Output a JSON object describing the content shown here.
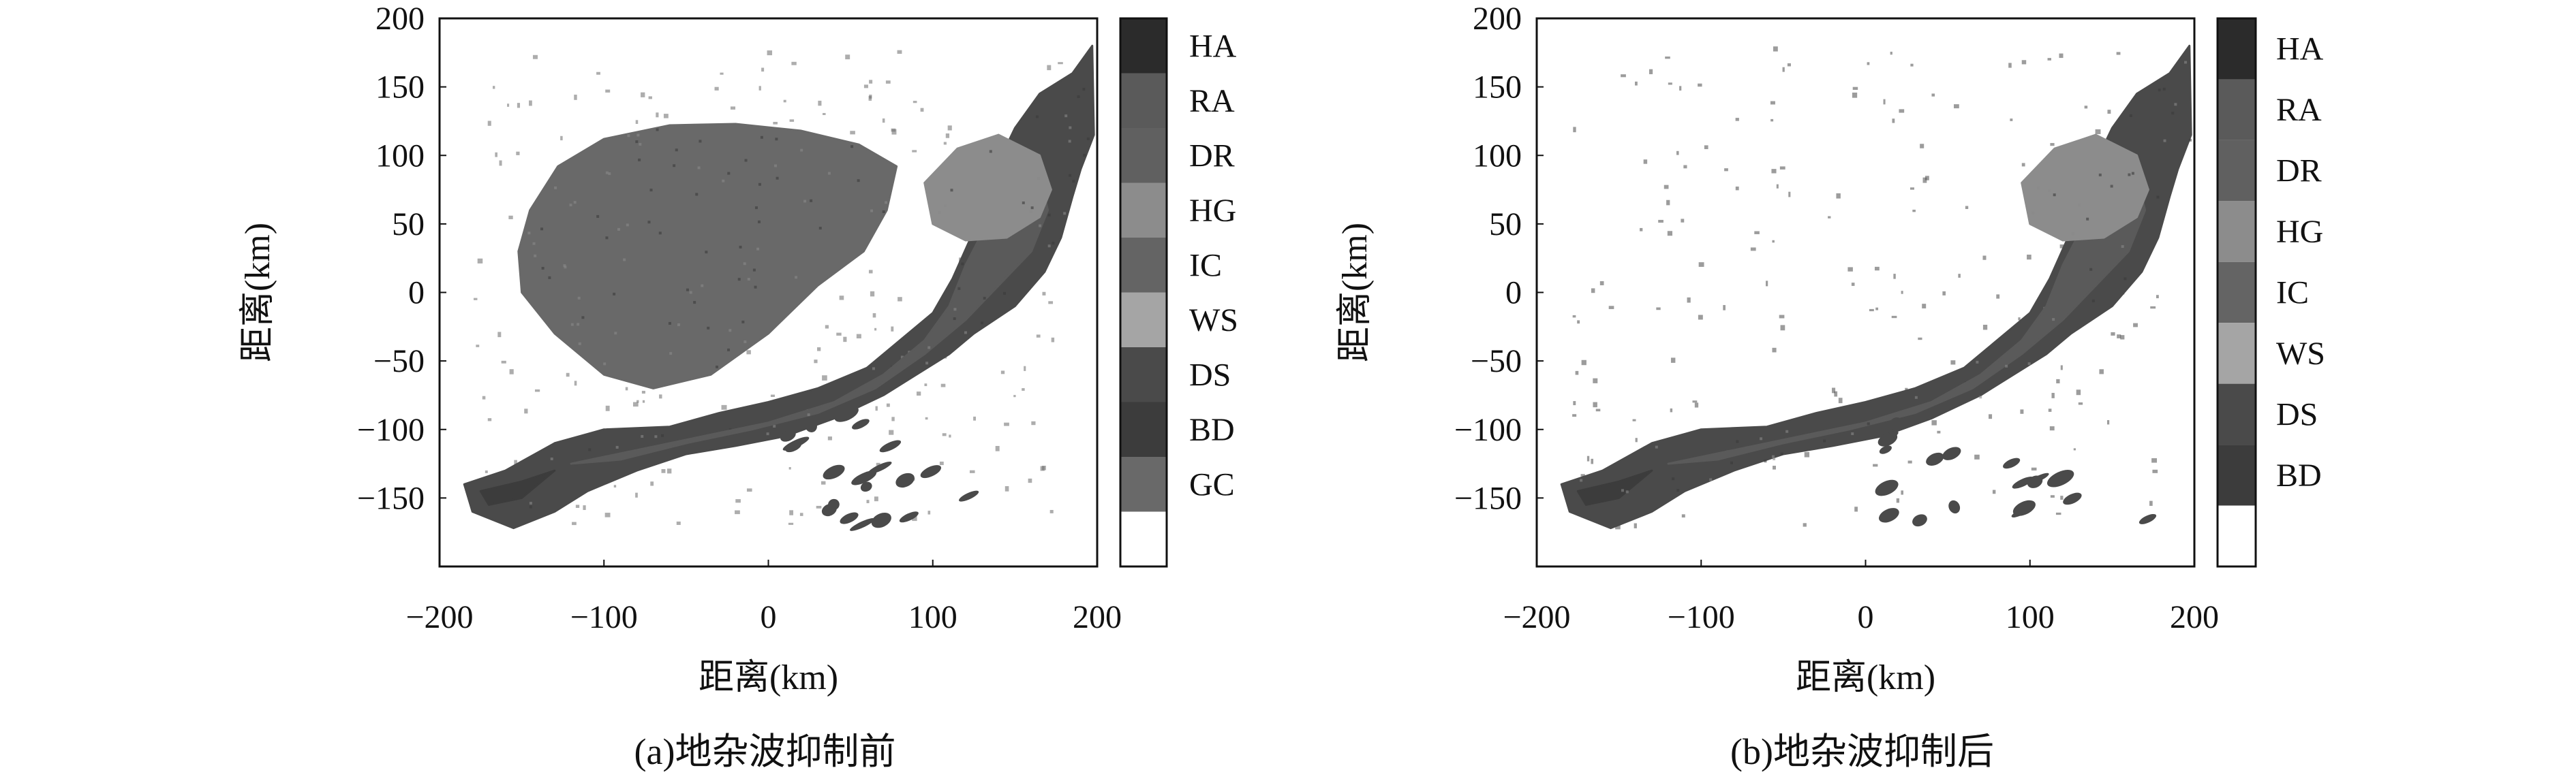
{
  "chart_data": [
    {
      "type": "heatmap",
      "caption": "(a)地杂波抑制前",
      "xlabel": "距离(km)",
      "ylabel": "距离(km)",
      "xlim": [
        -200,
        200
      ],
      "ylim": [
        -200,
        200
      ],
      "x_ticks": [
        "−200",
        "−100",
        "0",
        "100",
        "200"
      ],
      "y_ticks": [
        "200",
        "150",
        "100",
        "50",
        "0",
        "−50",
        "−100",
        "−150"
      ],
      "x_tick_values": [
        -200,
        -100,
        0,
        100,
        200
      ],
      "y_tick_values": [
        200,
        150,
        100,
        50,
        0,
        -50,
        -100,
        -150
      ],
      "legend": [
        {
          "label": "HA",
          "color": "#2b2b2b"
        },
        {
          "label": "RA",
          "color": "#5a5a5a"
        },
        {
          "label": "DR",
          "color": "#606060"
        },
        {
          "label": "HG",
          "color": "#8c8c8c"
        },
        {
          "label": "IC",
          "color": "#646464"
        },
        {
          "label": "WS",
          "color": "#a5a5a5"
        },
        {
          "label": "DS",
          "color": "#4a4a4a"
        },
        {
          "label": "BD",
          "color": "#3c3c3c"
        },
        {
          "label": "GC",
          "color": "#696969"
        },
        {
          "label": "",
          "color": "#ffffff"
        }
      ],
      "regions": [
        {
          "class": "GC",
          "points": [
            [
              -145,
              60
            ],
            [
              -128,
              92
            ],
            [
              -100,
              112
            ],
            [
              -60,
              122
            ],
            [
              -20,
              123
            ],
            [
              20,
              118
            ],
            [
              55,
              108
            ],
            [
              78,
              92
            ],
            [
              72,
              60
            ],
            [
              58,
              30
            ],
            [
              30,
              5
            ],
            [
              0,
              -30
            ],
            [
              -35,
              -60
            ],
            [
              -70,
              -70
            ],
            [
              -100,
              -60
            ],
            [
              -130,
              -30
            ],
            [
              -150,
              0
            ],
            [
              -152,
              30
            ]
          ]
        },
        {
          "class": "DS",
          "points": [
            [
              -185,
              -140
            ],
            [
              -160,
              -130
            ],
            [
              -130,
              -110
            ],
            [
              -100,
              -100
            ],
            [
              -60,
              -98
            ],
            [
              -30,
              -88
            ],
            [
              0,
              -80
            ],
            [
              30,
              -70
            ],
            [
              60,
              -55
            ],
            [
              80,
              -35
            ],
            [
              100,
              -15
            ],
            [
              112,
              10
            ],
            [
              125,
              45
            ],
            [
              138,
              90
            ],
            [
              150,
              120
            ],
            [
              165,
              145
            ],
            [
              185,
              160
            ],
            [
              197,
              180
            ],
            [
              198,
              115
            ],
            [
              190,
              90
            ],
            [
              185,
              70
            ],
            [
              178,
              40
            ],
            [
              168,
              15
            ],
            [
              150,
              -10
            ],
            [
              125,
              -30
            ],
            [
              110,
              -45
            ],
            [
              90,
              -60
            ],
            [
              70,
              -75
            ],
            [
              40,
              -92
            ],
            [
              10,
              -105
            ],
            [
              -20,
              -112
            ],
            [
              -50,
              -118
            ],
            [
              -80,
              -130
            ],
            [
              -110,
              -145
            ],
            [
              -130,
              -160
            ],
            [
              -155,
              -172
            ],
            [
              -180,
              -160
            ]
          ]
        },
        {
          "class": "RA",
          "points": [
            [
              -120,
              -125
            ],
            [
              -80,
              -115
            ],
            [
              -40,
              -105
            ],
            [
              0,
              -95
            ],
            [
              40,
              -80
            ],
            [
              70,
              -60
            ],
            [
              95,
              -35
            ],
            [
              110,
              -10
            ],
            [
              120,
              20
            ],
            [
              135,
              55
            ],
            [
              150,
              80
            ],
            [
              165,
              85
            ],
            [
              170,
              60
            ],
            [
              160,
              30
            ],
            [
              140,
              5
            ],
            [
              120,
              -20
            ],
            [
              95,
              -45
            ],
            [
              65,
              -70
            ],
            [
              30,
              -88
            ],
            [
              -10,
              -100
            ],
            [
              -50,
              -110
            ],
            [
              -90,
              -122
            ]
          ]
        },
        {
          "class": "HG",
          "points": [
            [
              95,
              80
            ],
            [
              115,
              105
            ],
            [
              140,
              115
            ],
            [
              165,
              100
            ],
            [
              172,
              75
            ],
            [
              165,
              55
            ],
            [
              145,
              40
            ],
            [
              120,
              38
            ],
            [
              100,
              50
            ]
          ]
        },
        {
          "class": "BD",
          "points": [
            [
              -175,
              -145
            ],
            [
              -150,
              -138
            ],
            [
              -130,
              -130
            ],
            [
              -150,
              -150
            ],
            [
              -170,
              -155
            ]
          ]
        }
      ],
      "speckles_class": "GC"
    },
    {
      "type": "heatmap",
      "caption": "(b)地杂波抑制后",
      "xlabel": "距离(km)",
      "ylabel": "距离(km)",
      "xlim": [
        -200,
        200
      ],
      "ylim": [
        -200,
        200
      ],
      "x_ticks": [
        "−200",
        "−100",
        "0",
        "100",
        "200"
      ],
      "y_ticks": [
        "200",
        "150",
        "100",
        "50",
        "0",
        "−50",
        "−100",
        "−150"
      ],
      "x_tick_values": [
        -200,
        -100,
        0,
        100,
        200
      ],
      "y_tick_values": [
        200,
        150,
        100,
        50,
        0,
        -50,
        -100,
        -150
      ],
      "legend": [
        {
          "label": "HA",
          "color": "#2b2b2b"
        },
        {
          "label": "RA",
          "color": "#5a5a5a"
        },
        {
          "label": "DR",
          "color": "#606060"
        },
        {
          "label": "HG",
          "color": "#8c8c8c"
        },
        {
          "label": "IC",
          "color": "#646464"
        },
        {
          "label": "WS",
          "color": "#a5a5a5"
        },
        {
          "label": "DS",
          "color": "#4a4a4a"
        },
        {
          "label": "BD",
          "color": "#3c3c3c"
        },
        {
          "label": "",
          "color": "#ffffff"
        }
      ],
      "regions": [
        {
          "class": "DS",
          "points": [
            [
              -185,
              -140
            ],
            [
              -160,
              -130
            ],
            [
              -130,
              -110
            ],
            [
              -100,
              -100
            ],
            [
              -60,
              -98
            ],
            [
              -30,
              -88
            ],
            [
              0,
              -80
            ],
            [
              30,
              -70
            ],
            [
              60,
              -55
            ],
            [
              80,
              -35
            ],
            [
              100,
              -15
            ],
            [
              112,
              10
            ],
            [
              125,
              45
            ],
            [
              138,
              90
            ],
            [
              150,
              120
            ],
            [
              165,
              145
            ],
            [
              185,
              160
            ],
            [
              197,
              180
            ],
            [
              198,
              115
            ],
            [
              190,
              90
            ],
            [
              185,
              70
            ],
            [
              178,
              40
            ],
            [
              168,
              15
            ],
            [
              150,
              -10
            ],
            [
              125,
              -30
            ],
            [
              110,
              -45
            ],
            [
              90,
              -60
            ],
            [
              70,
              -75
            ],
            [
              40,
              -92
            ],
            [
              10,
              -105
            ],
            [
              -20,
              -112
            ],
            [
              -50,
              -118
            ],
            [
              -80,
              -130
            ],
            [
              -110,
              -145
            ],
            [
              -130,
              -160
            ],
            [
              -155,
              -172
            ],
            [
              -180,
              -160
            ]
          ]
        },
        {
          "class": "RA",
          "points": [
            [
              -120,
              -125
            ],
            [
              -80,
              -115
            ],
            [
              -40,
              -105
            ],
            [
              0,
              -95
            ],
            [
              40,
              -80
            ],
            [
              70,
              -60
            ],
            [
              95,
              -35
            ],
            [
              110,
              -10
            ],
            [
              120,
              20
            ],
            [
              135,
              55
            ],
            [
              150,
              80
            ],
            [
              165,
              85
            ],
            [
              170,
              60
            ],
            [
              160,
              30
            ],
            [
              140,
              5
            ],
            [
              120,
              -20
            ],
            [
              95,
              -45
            ],
            [
              65,
              -70
            ],
            [
              30,
              -88
            ],
            [
              -10,
              -100
            ],
            [
              -50,
              -110
            ],
            [
              -90,
              -122
            ]
          ]
        },
        {
          "class": "HG",
          "points": [
            [
              95,
              80
            ],
            [
              115,
              105
            ],
            [
              140,
              115
            ],
            [
              165,
              100
            ],
            [
              172,
              75
            ],
            [
              165,
              55
            ],
            [
              145,
              40
            ],
            [
              120,
              38
            ],
            [
              100,
              50
            ]
          ]
        },
        {
          "class": "BD",
          "points": [
            [
              -175,
              -145
            ],
            [
              -150,
              -138
            ],
            [
              -130,
              -130
            ],
            [
              -150,
              -150
            ],
            [
              -170,
              -155
            ]
          ]
        }
      ],
      "speckles_class": "DS"
    }
  ]
}
